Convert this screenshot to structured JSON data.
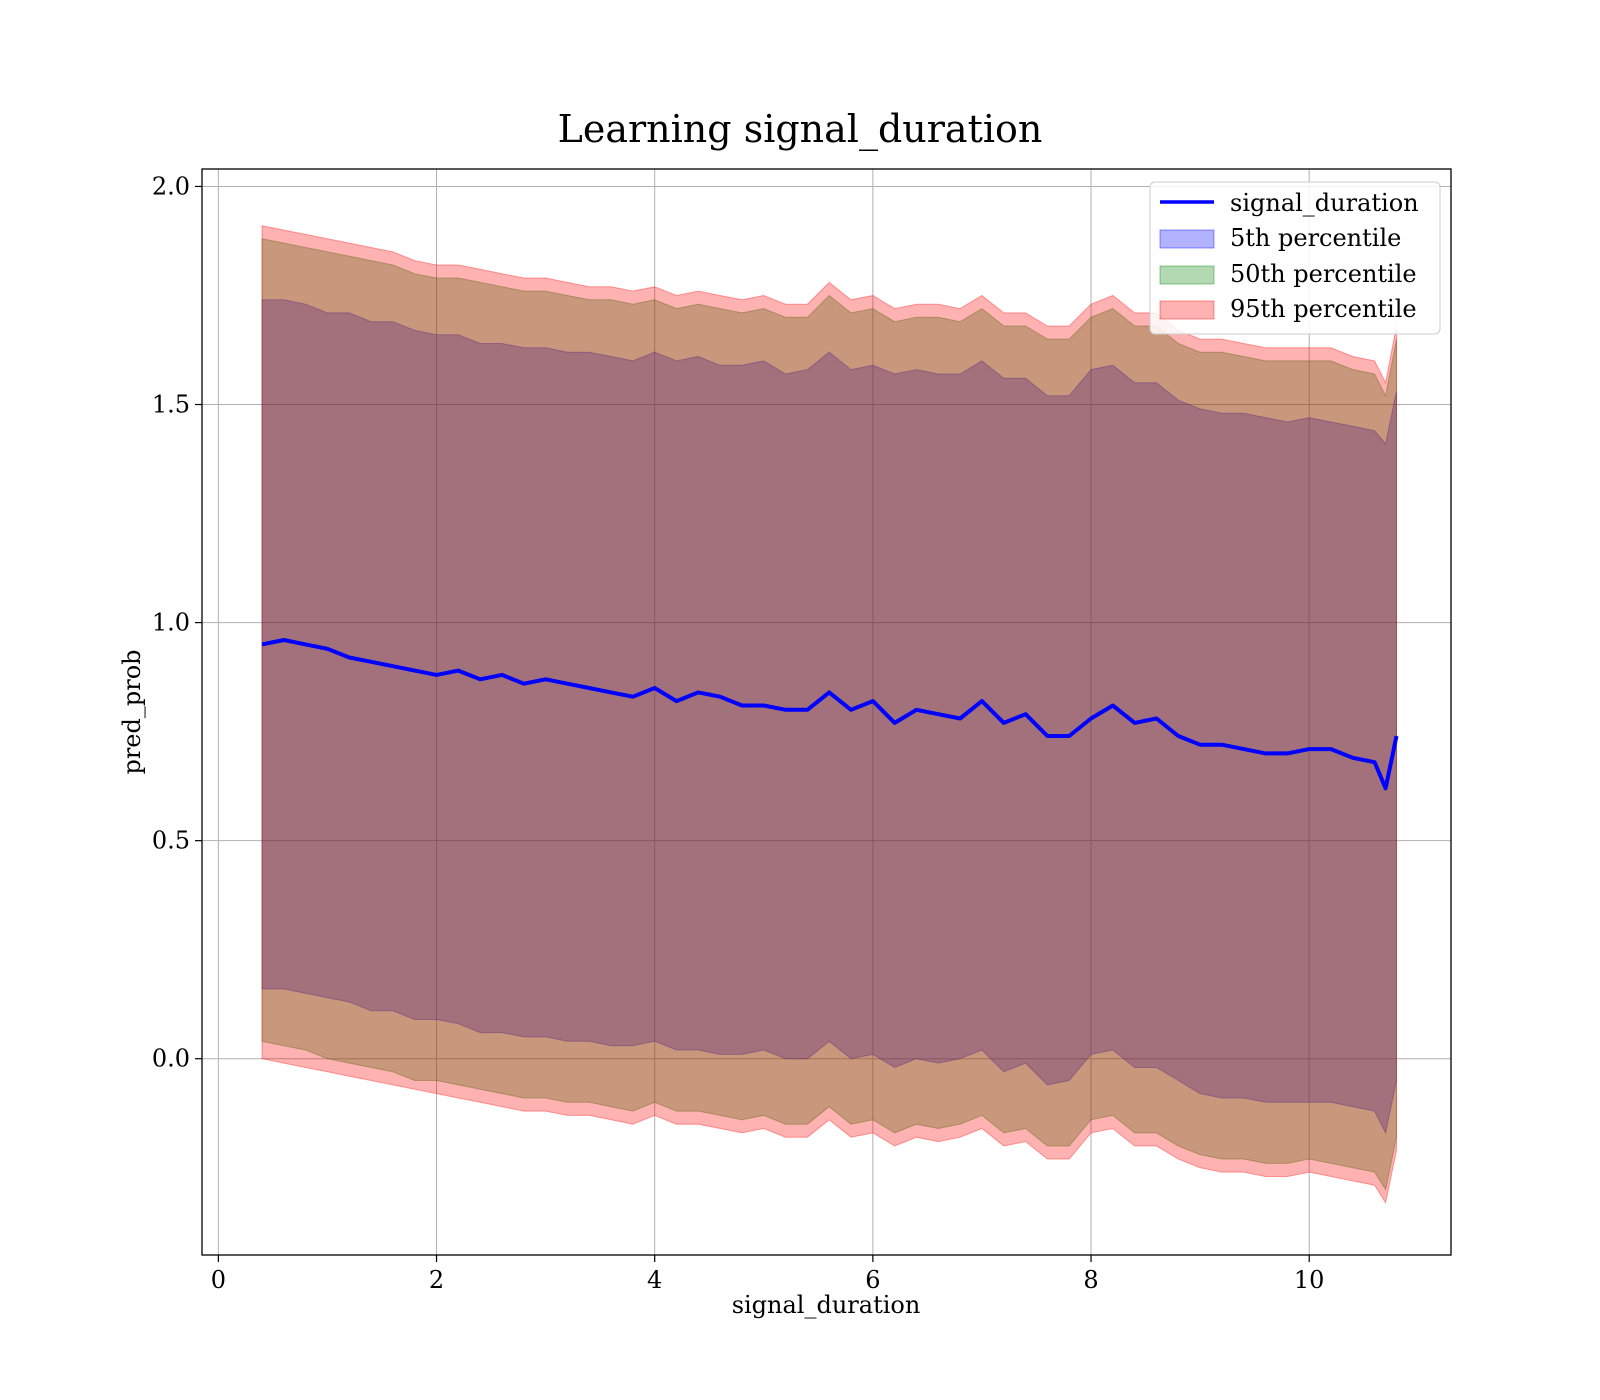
{
  "chart_data": {
    "type": "area",
    "title": "Learning signal_duration",
    "xlabel": "signal_duration",
    "ylabel": "pred_prob",
    "xlim": [
      -0.15,
      11.3
    ],
    "ylim": [
      -0.45,
      2.04
    ],
    "xticks": [
      0,
      2,
      4,
      6,
      8,
      10
    ],
    "xtick_labels": [
      "0",
      "2",
      "4",
      "6",
      "8",
      "10"
    ],
    "yticks": [
      0.0,
      0.5,
      1.0,
      1.5,
      2.0
    ],
    "ytick_labels": [
      "0.0",
      "0.5",
      "1.0",
      "1.5",
      "2.0"
    ],
    "grid": true,
    "legend_position": "top-right",
    "legend": [
      {
        "label": "signal_duration",
        "kind": "line",
        "color": "#0000ff"
      },
      {
        "label": "5th percentile",
        "kind": "band",
        "color": "#0000ff"
      },
      {
        "label": "50th percentile",
        "kind": "band",
        "color": "#008000"
      },
      {
        "label": "95th percentile",
        "kind": "band",
        "color": "#ff0000"
      }
    ],
    "x": [
      0.4,
      0.6,
      0.8,
      1.0,
      1.2,
      1.4,
      1.6,
      1.8,
      2.0,
      2.2,
      2.4,
      2.6,
      2.8,
      3.0,
      3.2,
      3.4,
      3.6,
      3.8,
      4.0,
      4.2,
      4.4,
      4.6,
      4.8,
      5.0,
      5.2,
      5.4,
      5.6,
      5.8,
      6.0,
      6.2,
      6.4,
      6.6,
      6.8,
      7.0,
      7.2,
      7.4,
      7.6,
      7.8,
      8.0,
      8.2,
      8.4,
      8.6,
      8.8,
      9.0,
      9.2,
      9.4,
      9.6,
      9.8,
      10.0,
      10.2,
      10.4,
      10.6,
      10.7,
      10.8
    ],
    "series": [
      {
        "name": "signal_duration",
        "values": [
          0.95,
          0.96,
          0.95,
          0.94,
          0.92,
          0.91,
          0.9,
          0.89,
          0.88,
          0.89,
          0.87,
          0.88,
          0.86,
          0.87,
          0.86,
          0.85,
          0.84,
          0.83,
          0.85,
          0.82,
          0.84,
          0.83,
          0.81,
          0.81,
          0.8,
          0.8,
          0.84,
          0.8,
          0.82,
          0.77,
          0.8,
          0.79,
          0.78,
          0.82,
          0.77,
          0.79,
          0.74,
          0.74,
          0.78,
          0.81,
          0.77,
          0.78,
          0.74,
          0.72,
          0.72,
          0.71,
          0.7,
          0.7,
          0.71,
          0.71,
          0.69,
          0.68,
          0.62,
          0.74
        ]
      },
      {
        "name": "5th percentile",
        "lower": [
          0.16,
          0.16,
          0.15,
          0.14,
          0.13,
          0.11,
          0.11,
          0.09,
          0.09,
          0.08,
          0.06,
          0.06,
          0.05,
          0.05,
          0.04,
          0.04,
          0.03,
          0.03,
          0.04,
          0.02,
          0.02,
          0.01,
          0.01,
          0.02,
          0.0,
          0.0,
          0.04,
          0.0,
          0.01,
          -0.02,
          0.0,
          -0.01,
          0.0,
          0.02,
          -0.03,
          -0.01,
          -0.06,
          -0.05,
          0.01,
          0.02,
          -0.02,
          -0.02,
          -0.05,
          -0.08,
          -0.09,
          -0.09,
          -0.1,
          -0.1,
          -0.1,
          -0.1,
          -0.11,
          -0.12,
          -0.17,
          -0.05
        ],
        "upper": [
          1.74,
          1.74,
          1.73,
          1.71,
          1.71,
          1.69,
          1.69,
          1.67,
          1.66,
          1.66,
          1.64,
          1.64,
          1.63,
          1.63,
          1.62,
          1.62,
          1.61,
          1.6,
          1.62,
          1.6,
          1.61,
          1.59,
          1.59,
          1.6,
          1.57,
          1.58,
          1.62,
          1.58,
          1.59,
          1.57,
          1.58,
          1.57,
          1.57,
          1.6,
          1.56,
          1.56,
          1.52,
          1.52,
          1.58,
          1.59,
          1.55,
          1.55,
          1.51,
          1.49,
          1.48,
          1.48,
          1.47,
          1.46,
          1.47,
          1.46,
          1.45,
          1.44,
          1.41,
          1.53
        ]
      },
      {
        "name": "50th percentile",
        "lower": [
          0.04,
          0.03,
          0.02,
          0.0,
          -0.01,
          -0.02,
          -0.03,
          -0.05,
          -0.05,
          -0.06,
          -0.07,
          -0.08,
          -0.09,
          -0.09,
          -0.1,
          -0.1,
          -0.11,
          -0.12,
          -0.1,
          -0.12,
          -0.12,
          -0.13,
          -0.14,
          -0.13,
          -0.15,
          -0.15,
          -0.11,
          -0.15,
          -0.14,
          -0.17,
          -0.15,
          -0.16,
          -0.15,
          -0.13,
          -0.17,
          -0.16,
          -0.2,
          -0.2,
          -0.14,
          -0.13,
          -0.17,
          -0.17,
          -0.2,
          -0.22,
          -0.23,
          -0.23,
          -0.24,
          -0.24,
          -0.23,
          -0.24,
          -0.25,
          -0.26,
          -0.3,
          -0.18
        ],
        "upper": [
          1.88,
          1.87,
          1.86,
          1.85,
          1.84,
          1.83,
          1.82,
          1.8,
          1.79,
          1.79,
          1.78,
          1.77,
          1.76,
          1.76,
          1.75,
          1.74,
          1.74,
          1.73,
          1.74,
          1.72,
          1.73,
          1.72,
          1.71,
          1.72,
          1.7,
          1.7,
          1.75,
          1.71,
          1.72,
          1.69,
          1.7,
          1.7,
          1.69,
          1.72,
          1.68,
          1.68,
          1.65,
          1.65,
          1.7,
          1.72,
          1.68,
          1.68,
          1.64,
          1.62,
          1.62,
          1.61,
          1.6,
          1.6,
          1.6,
          1.6,
          1.58,
          1.57,
          1.52,
          1.65
        ]
      },
      {
        "name": "95th percentile",
        "lower": [
          0.0,
          -0.01,
          -0.02,
          -0.03,
          -0.04,
          -0.05,
          -0.06,
          -0.07,
          -0.08,
          -0.09,
          -0.1,
          -0.11,
          -0.12,
          -0.12,
          -0.13,
          -0.13,
          -0.14,
          -0.15,
          -0.13,
          -0.15,
          -0.15,
          -0.16,
          -0.17,
          -0.16,
          -0.18,
          -0.18,
          -0.14,
          -0.18,
          -0.17,
          -0.2,
          -0.18,
          -0.19,
          -0.18,
          -0.16,
          -0.2,
          -0.19,
          -0.23,
          -0.23,
          -0.17,
          -0.16,
          -0.2,
          -0.2,
          -0.23,
          -0.25,
          -0.26,
          -0.26,
          -0.27,
          -0.27,
          -0.26,
          -0.27,
          -0.28,
          -0.29,
          -0.33,
          -0.21
        ],
        "upper": [
          1.91,
          1.9,
          1.89,
          1.88,
          1.87,
          1.86,
          1.85,
          1.83,
          1.82,
          1.82,
          1.81,
          1.8,
          1.79,
          1.79,
          1.78,
          1.77,
          1.77,
          1.76,
          1.77,
          1.75,
          1.76,
          1.75,
          1.74,
          1.75,
          1.73,
          1.73,
          1.78,
          1.74,
          1.75,
          1.72,
          1.73,
          1.73,
          1.72,
          1.75,
          1.71,
          1.71,
          1.68,
          1.68,
          1.73,
          1.75,
          1.71,
          1.71,
          1.67,
          1.65,
          1.65,
          1.64,
          1.63,
          1.63,
          1.63,
          1.63,
          1.61,
          1.6,
          1.55,
          1.68
        ]
      }
    ],
    "colors": {
      "line": "#0000ff",
      "band_5th": "#0000ff",
      "band_50th": "#008000",
      "band_95th": "#ff0000",
      "grid": "#b0b0b0"
    }
  }
}
